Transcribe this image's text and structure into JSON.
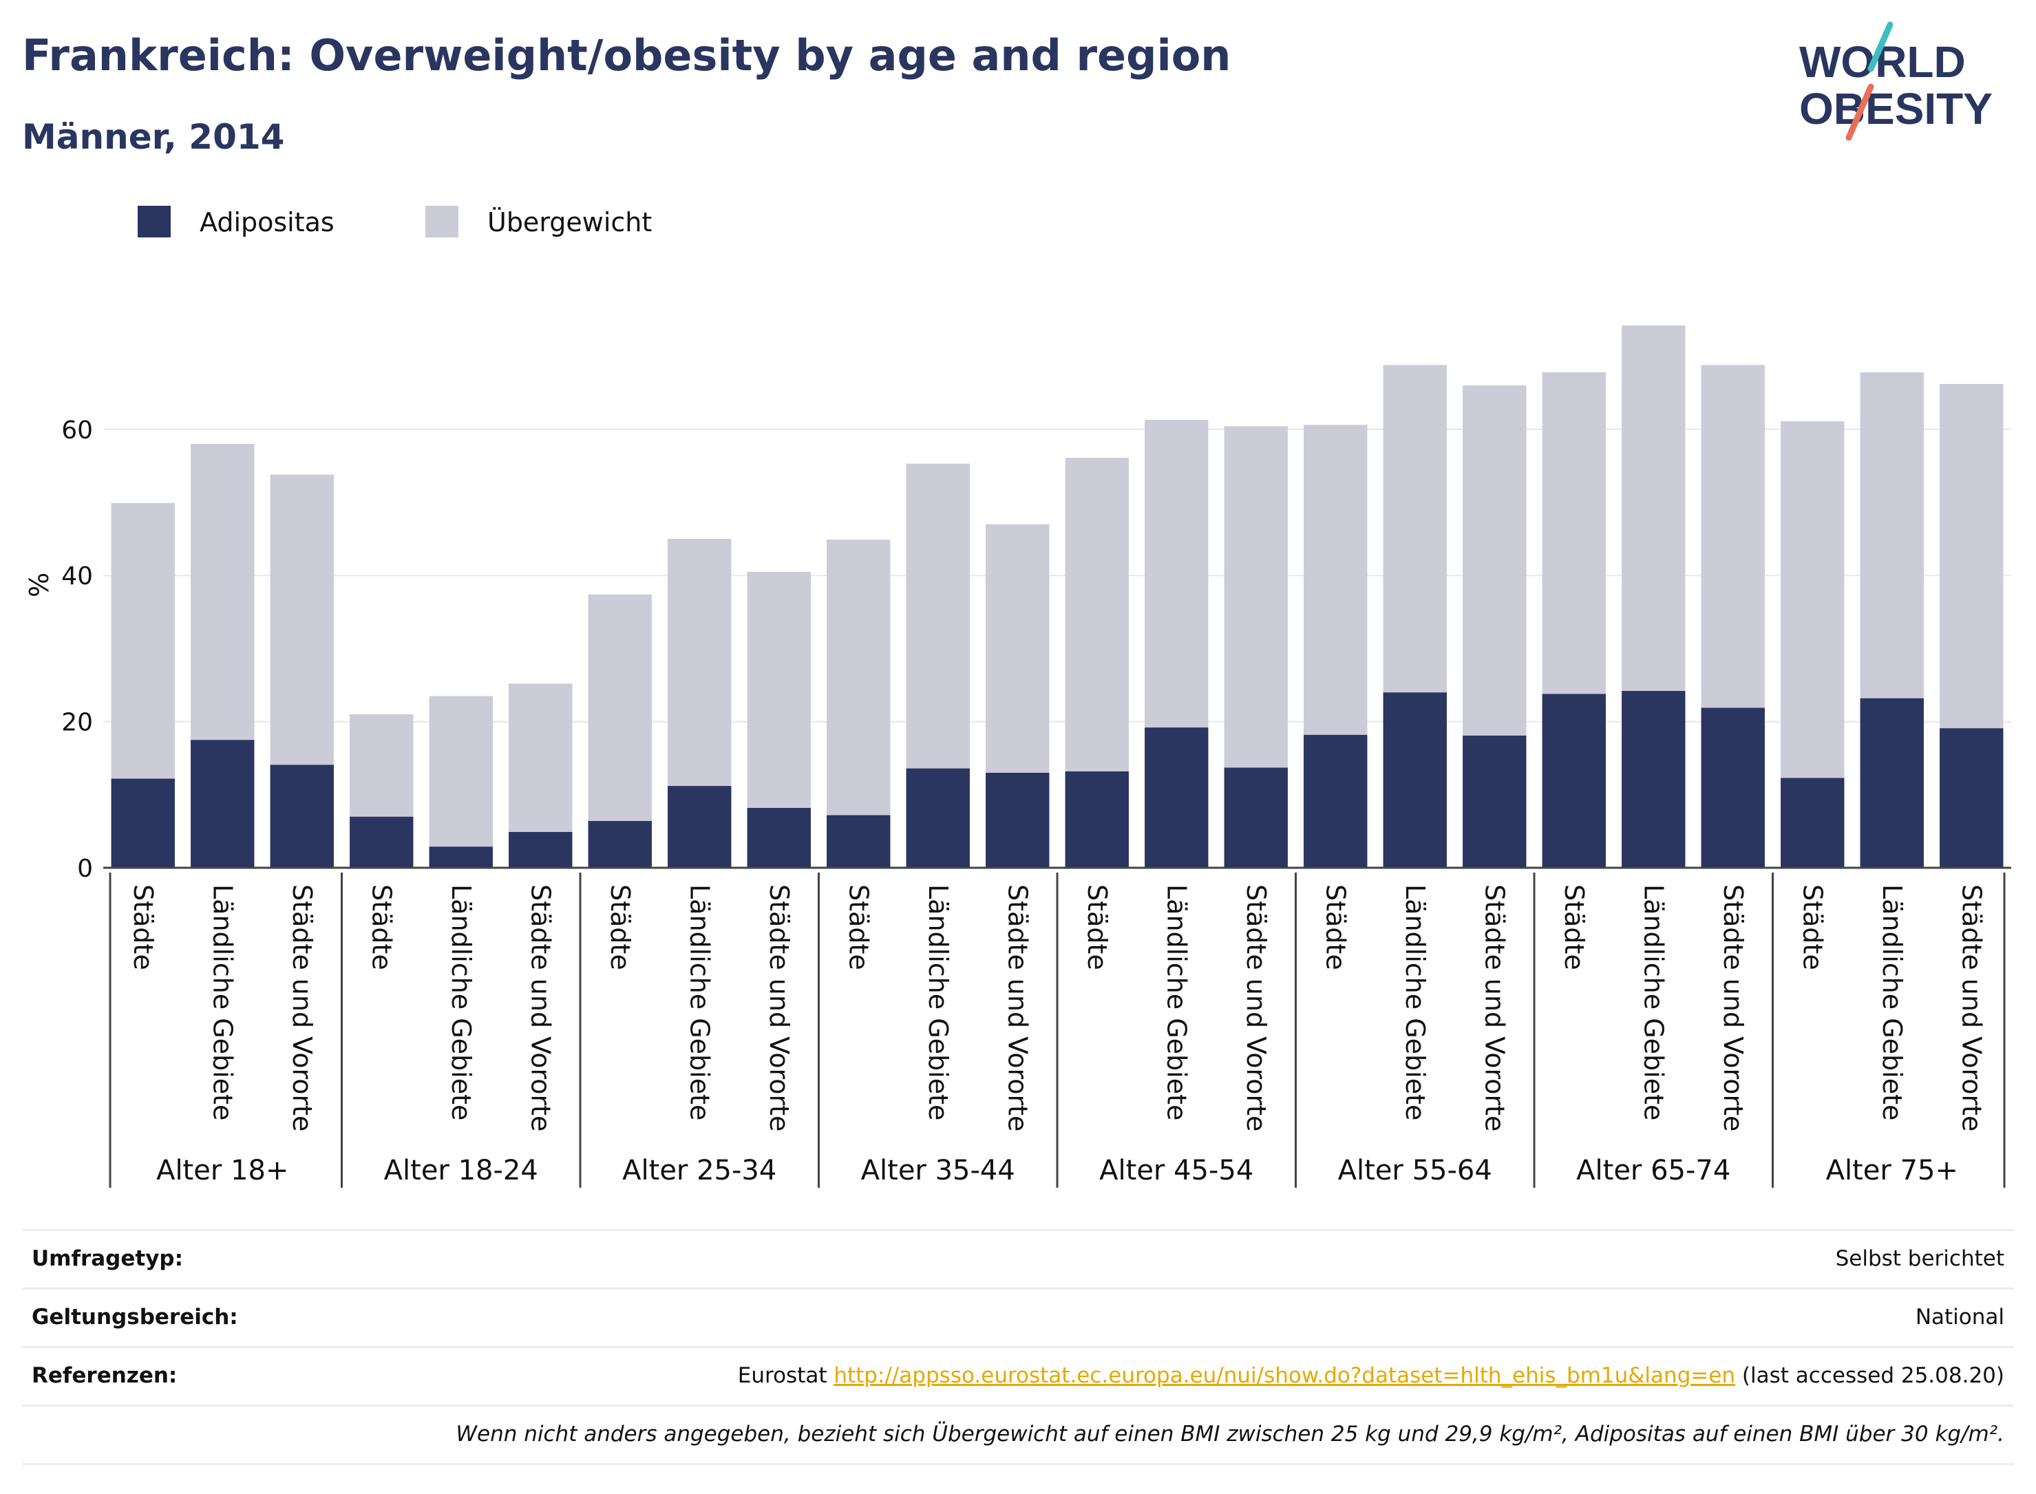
{
  "title": "Frankreich: Overweight/obesity by age and region",
  "subtitle": "Männer, 2014",
  "logo": {
    "line1": "WORLD",
    "line2": "OBESITY"
  },
  "chart_data": {
    "type": "bar",
    "stacked": true,
    "ylabel": "%",
    "ylim": [
      0,
      80
    ],
    "yticks": [
      0,
      20,
      40,
      60
    ],
    "grid": true,
    "legend_position": "top-left",
    "groups": [
      "Alter 18+",
      "Alter 18-24",
      "Alter 25-34",
      "Alter 35-44",
      "Alter 45-54",
      "Alter 55-64",
      "Alter 65-74",
      "Alter 75+"
    ],
    "subcategories": [
      "Städte",
      "Ländliche Gebiete",
      "Städte und Vororte"
    ],
    "series": [
      {
        "name": "Adipositas",
        "color": "#2a3560",
        "values": [
          12.2,
          17.5,
          14.1,
          7.0,
          2.9,
          4.9,
          6.4,
          11.2,
          8.2,
          7.2,
          13.6,
          13.0,
          13.2,
          19.2,
          13.7,
          18.2,
          24.0,
          18.1,
          23.8,
          24.2,
          21.9,
          12.3,
          23.2,
          19.1
        ]
      },
      {
        "name": "Übergewicht",
        "color": "#cbccd8",
        "values": [
          37.7,
          40.5,
          39.7,
          14.0,
          20.6,
          20.3,
          31.0,
          33.8,
          32.3,
          37.7,
          41.7,
          34.0,
          42.9,
          42.1,
          46.7,
          42.4,
          44.8,
          47.9,
          44.0,
          50.0,
          46.9,
          48.8,
          44.6,
          47.1
        ]
      }
    ]
  },
  "info": {
    "survey_label": "Umfragetyp:",
    "survey_value": "Selbst berichtet",
    "scope_label": "Geltungsbereich:",
    "scope_value": "National",
    "ref_label": "Referenzen:",
    "ref_prefix": "Eurostat ",
    "ref_link": "http://appsso.eurostat.ec.europa.eu/nui/show.do?dataset=hlth_ehis_bm1u&lang=en",
    "ref_suffix": " (last accessed 25.08.20)",
    "footnote": "Wenn nicht anders angegeben, bezieht sich Übergewicht auf einen BMI zwischen 25 kg und 29,9 kg/m², Adipositas auf einen BMI über 30 kg/m²."
  }
}
